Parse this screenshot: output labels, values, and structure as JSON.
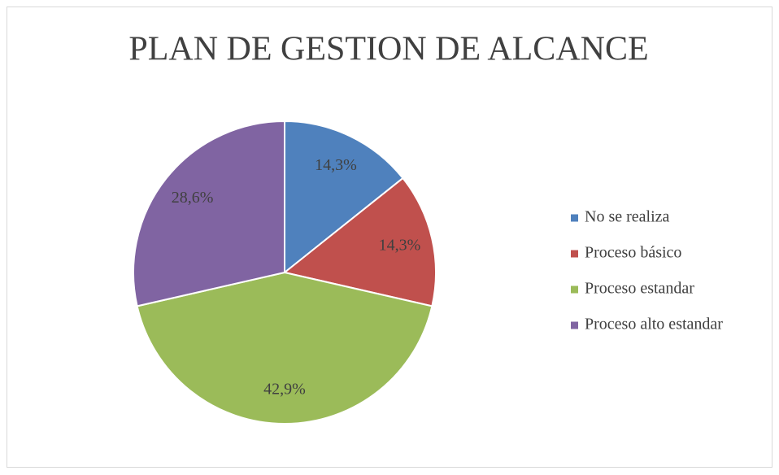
{
  "chart_data": {
    "type": "pie",
    "title": "PLAN DE GESTION DE ALCANCE",
    "categories": [
      "No se realiza",
      "Proceso básico",
      "Proceso estandar",
      "Proceso alto estandar"
    ],
    "values": [
      14.3,
      14.3,
      42.9,
      28.6
    ],
    "value_labels": [
      "14,3%",
      "14,3%",
      "42,9%",
      "28,6%"
    ],
    "colors": [
      "#4f81bd",
      "#c0504d",
      "#9bbb59",
      "#8064a2"
    ],
    "legend": "right"
  }
}
